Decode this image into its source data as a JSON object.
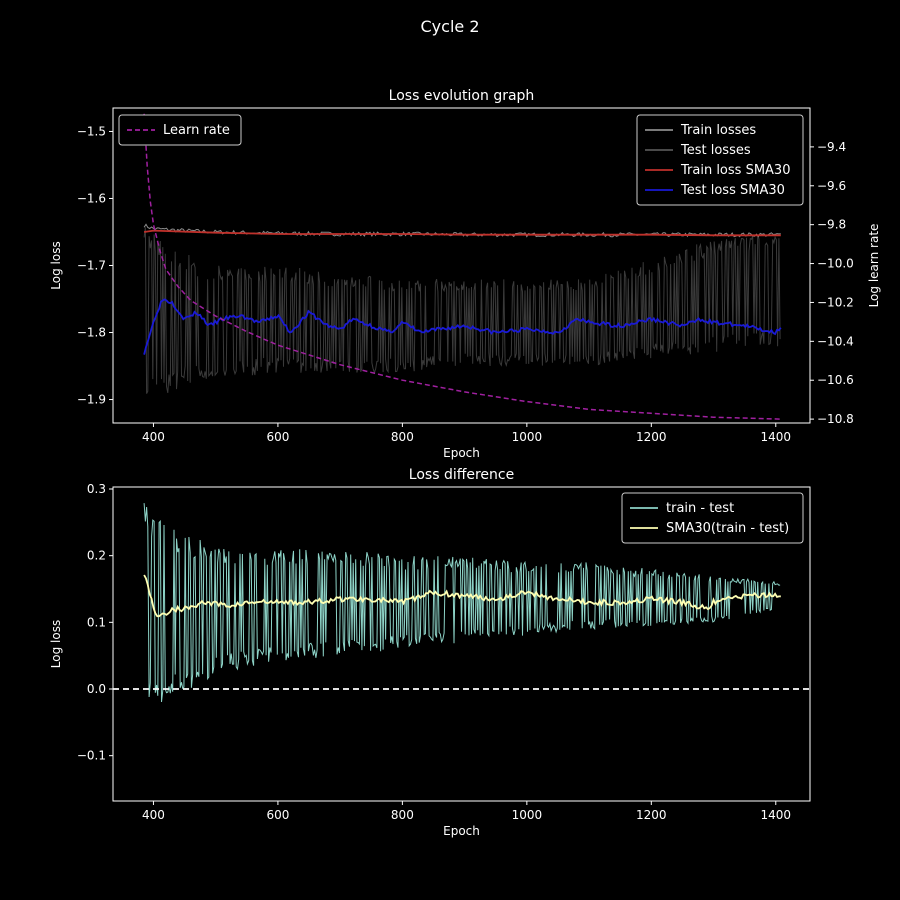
{
  "figure": {
    "suptitle": "Cycle 2"
  },
  "colors": {
    "background": "#000000",
    "foreground": "#ffffff",
    "train_losses": "#8c8c8c",
    "test_losses": "#3a3a3a",
    "train_sma": "#c0312b",
    "test_sma": "#1a1ad6",
    "learn_rate": "#a020a0",
    "diff": "#8dd3c7",
    "diff_sma": "#ffffb3"
  },
  "chart_data": [
    {
      "type": "line",
      "title": "Loss evolution graph",
      "xlabel": "Epoch",
      "ylabel": "Log loss",
      "y2label": "Log learn rate",
      "xlim": [
        335,
        1455
      ],
      "ylim": [
        -1.935,
        -1.465
      ],
      "y2lim": [
        -10.82,
        -9.2
      ],
      "xticks": [
        400,
        600,
        800,
        1000,
        1200,
        1400
      ],
      "yticks": [
        -1.5,
        -1.6,
        -1.7,
        -1.8,
        -1.9
      ],
      "y2ticks": [
        -9.4,
        -9.6,
        -9.8,
        -10.0,
        -10.2,
        -10.4,
        -10.6,
        -10.8
      ],
      "ytick_labels": [
        "−1.5",
        "−1.6",
        "−1.7",
        "−1.8",
        "−1.9"
      ],
      "y2tick_labels": [
        "−9.4",
        "−9.6",
        "−9.8",
        "−10.0",
        "−10.2",
        "−10.4",
        "−10.6",
        "−10.8"
      ],
      "xtick_labels": [
        "400",
        "600",
        "800",
        "1000",
        "1200",
        "1400"
      ],
      "grid": false,
      "legend_placement": [
        "top-right",
        "top-left"
      ],
      "x_range": [
        385,
        1408
      ],
      "series": [
        {
          "name": "Train losses",
          "style": "line",
          "x": [
            385,
            400,
            450,
            500,
            600,
            700,
            800,
            900,
            1000,
            1100,
            1200,
            1300,
            1408
          ],
          "y": [
            -1.64,
            -1.645,
            -1.648,
            -1.65,
            -1.652,
            -1.653,
            -1.653,
            -1.654,
            -1.654,
            -1.654,
            -1.654,
            -1.654,
            -1.654
          ]
        },
        {
          "name": "Test losses",
          "style": "band",
          "x": [
            385,
            400,
            450,
            500,
            600,
            700,
            800,
            900,
            1000,
            1100,
            1200,
            1300,
            1408
          ],
          "upper": [
            -1.64,
            -1.65,
            -1.68,
            -1.7,
            -1.7,
            -1.71,
            -1.72,
            -1.72,
            -1.72,
            -1.72,
            -1.69,
            -1.66,
            -1.65
          ],
          "lower": [
            -1.91,
            -1.9,
            -1.88,
            -1.87,
            -1.86,
            -1.86,
            -1.86,
            -1.85,
            -1.85,
            -1.85,
            -1.84,
            -1.83,
            -1.82
          ]
        },
        {
          "name": "Train loss SMA30",
          "style": "line",
          "x": [
            385,
            400,
            500,
            600,
            700,
            800,
            900,
            1000,
            1100,
            1200,
            1300,
            1408
          ],
          "y": [
            -1.65,
            -1.648,
            -1.651,
            -1.653,
            -1.653,
            -1.653,
            -1.654,
            -1.654,
            -1.654,
            -1.654,
            -1.655,
            -1.655
          ]
        },
        {
          "name": "Test loss SMA30",
          "style": "line",
          "x": [
            385,
            395,
            405,
            415,
            430,
            450,
            470,
            490,
            510,
            540,
            570,
            600,
            620,
            650,
            680,
            700,
            720,
            750,
            780,
            800,
            830,
            860,
            900,
            950,
            1000,
            1050,
            1080,
            1100,
            1150,
            1200,
            1250,
            1280,
            1300,
            1350,
            1400,
            1408
          ],
          "y": [
            -1.83,
            -1.8,
            -1.77,
            -1.75,
            -1.755,
            -1.78,
            -1.77,
            -1.79,
            -1.78,
            -1.775,
            -1.785,
            -1.775,
            -1.8,
            -1.77,
            -1.79,
            -1.795,
            -1.78,
            -1.79,
            -1.8,
            -1.785,
            -1.8,
            -1.795,
            -1.79,
            -1.8,
            -1.795,
            -1.8,
            -1.78,
            -1.785,
            -1.79,
            -1.78,
            -1.79,
            -1.78,
            -1.785,
            -1.79,
            -1.8,
            -1.79
          ]
        },
        {
          "name": "Learn rate",
          "style": "dashed",
          "axis": "y2",
          "x": [
            385,
            390,
            395,
            400,
            410,
            420,
            440,
            460,
            500,
            550,
            600,
            700,
            800,
            900,
            1000,
            1100,
            1200,
            1300,
            1408
          ],
          "y": [
            -9.23,
            -9.5,
            -9.68,
            -9.8,
            -9.93,
            -10.03,
            -10.12,
            -10.19,
            -10.27,
            -10.35,
            -10.42,
            -10.52,
            -10.6,
            -10.66,
            -10.71,
            -10.75,
            -10.77,
            -10.79,
            -10.8
          ]
        }
      ]
    },
    {
      "type": "line",
      "title": "Loss difference",
      "xlabel": "Epoch",
      "ylabel": "Log loss",
      "xlim": [
        335,
        1455
      ],
      "ylim": [
        -0.168,
        0.303
      ],
      "xticks": [
        400,
        600,
        800,
        1000,
        1200,
        1400
      ],
      "yticks": [
        0.3,
        0.2,
        0.1,
        0.0,
        -0.1
      ],
      "xtick_labels": [
        "400",
        "600",
        "800",
        "1000",
        "1200",
        "1400"
      ],
      "ytick_labels": [
        "0.3",
        "0.2",
        "0.1",
        "0.0",
        "−0.1"
      ],
      "grid": false,
      "legend_placement": "top-right",
      "hline": {
        "y": 0.0,
        "style": "dashed"
      },
      "series": [
        {
          "name": "train - test",
          "style": "band",
          "x": [
            385,
            400,
            450,
            500,
            600,
            700,
            800,
            900,
            1000,
            1100,
            1200,
            1300,
            1408
          ],
          "upper": [
            0.28,
            0.26,
            0.23,
            0.22,
            0.21,
            0.21,
            0.2,
            0.2,
            0.19,
            0.19,
            0.18,
            0.17,
            0.16
          ],
          "lower": [
            -0.04,
            -0.03,
            -0.01,
            0.02,
            0.04,
            0.05,
            0.06,
            0.07,
            0.08,
            0.09,
            0.09,
            0.1,
            0.12
          ]
        },
        {
          "name": "SMA30(train - test)",
          "style": "line",
          "x": [
            385,
            395,
            405,
            415,
            430,
            450,
            480,
            520,
            560,
            600,
            650,
            700,
            750,
            800,
            850,
            900,
            950,
            1000,
            1050,
            1100,
            1150,
            1200,
            1250,
            1290,
            1300,
            1350,
            1408
          ],
          "y": [
            0.175,
            0.14,
            0.11,
            0.11,
            0.12,
            0.12,
            0.13,
            0.125,
            0.13,
            0.13,
            0.13,
            0.135,
            0.135,
            0.13,
            0.145,
            0.14,
            0.135,
            0.145,
            0.135,
            0.13,
            0.13,
            0.135,
            0.13,
            0.12,
            0.13,
            0.14,
            0.14
          ]
        }
      ]
    }
  ]
}
